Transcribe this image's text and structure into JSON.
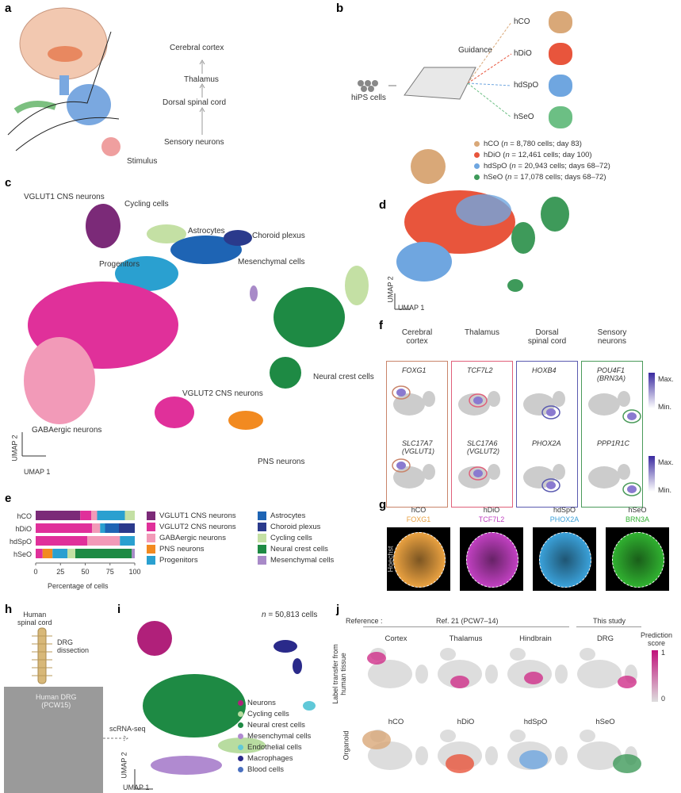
{
  "panel_labels": {
    "a": "a",
    "b": "b",
    "c": "c",
    "d": "d",
    "e": "e",
    "f": "f",
    "g": "g",
    "h": "h",
    "i": "i",
    "j": "j"
  },
  "a": {
    "hierarchy": [
      "Cerebral cortex",
      "Thalamus",
      "Dorsal spinal cord",
      "Sensory neurons"
    ],
    "stimulus": "Stimulus"
  },
  "b": {
    "source": "hiPS cells",
    "guidance": "Guidance",
    "organoids": [
      {
        "name": "hCO",
        "color": "#d9a878"
      },
      {
        "name": "hDiO",
        "color": "#e8553c"
      },
      {
        "name": "hdSpO",
        "color": "#6fa6e0"
      },
      {
        "name": "hSeO",
        "color": "#6cbf84"
      }
    ]
  },
  "c": {
    "clusters": [
      "VGLUT1 CNS neurons",
      "Cycling cells",
      "Astrocytes",
      "Choroid plexus",
      "Progenitors",
      "Mesenchymal cells",
      "Neural crest cells",
      "VGLUT2 CNS neurons",
      "GABAergic neurons",
      "PNS neurons"
    ],
    "axis_x": "UMAP 1",
    "axis_y": "UMAP 2"
  },
  "d": {
    "legend": [
      {
        "name": "hCO",
        "n": "8,780",
        "rest": " cells; day 83)",
        "color": "#d9a878"
      },
      {
        "name": "hDiO",
        "n": "12,461",
        "rest": " cells; day 100)",
        "color": "#e8553c"
      },
      {
        "name": "hdSpO",
        "n": "20,943",
        "rest": " cells; days 68–72)",
        "color": "#6fa6e0"
      },
      {
        "name": "hSeO",
        "n": "17,078",
        "rest": " cells; days 68–72)",
        "color": "#3e9a5a"
      }
    ],
    "n_prefix": " (",
    "n_italic": "n",
    "eq": " = ",
    "axis_x": "UMAP 1",
    "axis_y": "UMAP 2"
  },
  "f": {
    "columns": [
      {
        "title": "Cerebral\ncortex",
        "genes": [
          "FOXG1",
          "SLC17A7\n(VGLUT1)"
        ],
        "color": "#c9846a"
      },
      {
        "title": "Thalamus",
        "genes": [
          "TCF7L2",
          "SLC17A6\n(VGLUT2)"
        ],
        "color": "#e0607a"
      },
      {
        "title": "Dorsal\nspinal cord",
        "genes": [
          "HOXB4",
          "PHOX2A"
        ],
        "color": "#5a5ab0"
      },
      {
        "title": "Sensory\nneurons",
        "genes": [
          "POU4F1\n(BRN3A)",
          "PPP1R1C"
        ],
        "color": "#4a9a5a"
      }
    ],
    "scale_max": "Max.",
    "scale_min": "Min."
  },
  "chart_data": {
    "type": "bar",
    "stacked": true,
    "orientation": "horizontal",
    "categories": [
      "hCO",
      "hDiO",
      "hdSpO",
      "hSeO"
    ],
    "xlabel": "Percentage of cells",
    "xlim": [
      0,
      100
    ],
    "xticks": [
      "0",
      "25",
      "50",
      "75",
      "100"
    ],
    "series": [
      {
        "name": "VGLUT1 CNS neurons",
        "color": "#7b2a78",
        "values": [
          45,
          0,
          0,
          0
        ]
      },
      {
        "name": "VGLUT2 CNS neurons",
        "color": "#e0309a",
        "values": [
          11,
          57,
          52,
          7
        ]
      },
      {
        "name": "GABAergic neurons",
        "color": "#f29ab8",
        "values": [
          6,
          8,
          33,
          0
        ]
      },
      {
        "name": "PNS neurons",
        "color": "#f28a20",
        "values": [
          0,
          0,
          0,
          10
        ]
      },
      {
        "name": "Progenitors",
        "color": "#2aa0d0",
        "values": [
          28,
          5,
          15,
          15
        ]
      },
      {
        "name": "Astrocytes",
        "color": "#1e64b4",
        "values": [
          0,
          14,
          0,
          0
        ]
      },
      {
        "name": "Choroid plexus",
        "color": "#2a3a8c",
        "values": [
          0,
          16,
          0,
          0
        ]
      },
      {
        "name": "Cycling cells",
        "color": "#c4e0a4",
        "values": [
          10,
          0,
          0,
          8
        ]
      },
      {
        "name": "Neural crest cells",
        "color": "#1e8a44",
        "values": [
          0,
          0,
          0,
          57
        ]
      },
      {
        "name": "Mesenchymal cells",
        "color": "#a88ac8",
        "values": [
          0,
          0,
          0,
          3
        ]
      }
    ],
    "legend_order": [
      0,
      1,
      2,
      3,
      4,
      5,
      6,
      7,
      8,
      9
    ],
    "legend": "right"
  },
  "g": {
    "columns": [
      {
        "name": "hCO",
        "marker": "FOXG1",
        "color": "#e8a040"
      },
      {
        "name": "hDiO",
        "marker": "TCF7L2",
        "color": "#c040c0"
      },
      {
        "name": "hdSpO",
        "marker": "PHOX2A",
        "color": "#3aa0d8"
      },
      {
        "name": "hSeO",
        "marker": "BRN3A",
        "color": "#30b030"
      }
    ],
    "counterstain": "Hoechst"
  },
  "h": {
    "tissue": "Human\nspinal cord",
    "step": "DRG\ndissection",
    "photo_label": "Human DRG\n(PCW15)",
    "method": "scRNA-seq"
  },
  "i": {
    "n_label": "n",
    "n_value": " = 50,813 cells",
    "legend": [
      {
        "name": "Neurons",
        "color": "#b0207a"
      },
      {
        "name": "Cycling cells",
        "color": "#b8dca0"
      },
      {
        "name": "Neural crest cells",
        "color": "#1e8a44"
      },
      {
        "name": "Mesenchymal cells",
        "color": "#b08ad0"
      },
      {
        "name": "Endothelial cells",
        "color": "#60c8d8"
      },
      {
        "name": "Macrophages",
        "color": "#2a2a8a"
      },
      {
        "name": "Blood cells",
        "color": "#4a70c0"
      }
    ],
    "axis_x": "UMAP 1",
    "axis_y": "UMAP 2"
  },
  "j": {
    "reference_label": "Reference :",
    "ref_group": "Ref. 21 (PCW7–14)",
    "this_study": "This study",
    "row1_label": "Label transfer from\nhuman tissue",
    "row2_label": "Organoid",
    "row1": [
      "Cortex",
      "Thalamus",
      "Hindbrain",
      "DRG"
    ],
    "row2": [
      "hCO",
      "hDiO",
      "hdSpO",
      "hSeO"
    ],
    "colorbar_title": "Prediction\nscore",
    "colorbar_max": "1",
    "colorbar_min": "0"
  }
}
